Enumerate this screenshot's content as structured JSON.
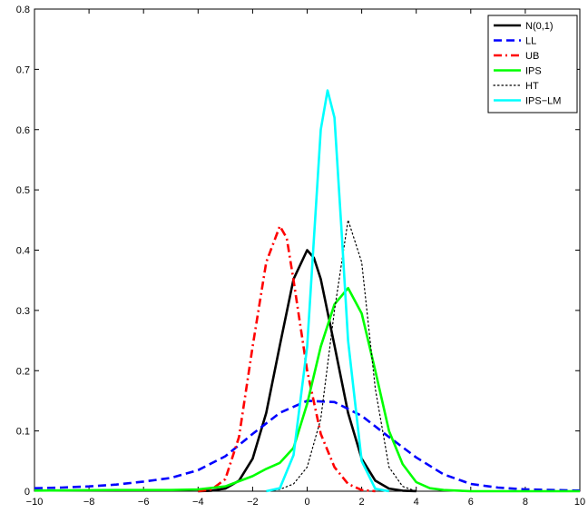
{
  "chart_data": {
    "type": "line",
    "title": "",
    "xlabel": "",
    "ylabel": "",
    "xlim": [
      -10,
      10
    ],
    "ylim": [
      0,
      0.8
    ],
    "x_ticks": [
      -10,
      -8,
      -6,
      -4,
      -2,
      0,
      2,
      4,
      6,
      8,
      10
    ],
    "y_ticks": [
      0,
      0.1,
      0.2,
      0.3,
      0.4,
      0.5,
      0.6,
      0.7,
      0.8
    ],
    "x_tick_labels": [
      "−10",
      "−8",
      "−6",
      "−4",
      "−2",
      "0",
      "2",
      "4",
      "6",
      "8",
      "10"
    ],
    "y_tick_labels": [
      "0",
      "0.1",
      "0.2",
      "0.3",
      "0.4",
      "0.5",
      "0.6",
      "0.7",
      "0.8"
    ],
    "grid": false,
    "legend_position": "top-right",
    "series": [
      {
        "name": "N(0,1)",
        "color": "#000000",
        "style": "solid",
        "x": [
          -4,
          -3.5,
          -3,
          -2.5,
          -2,
          -1.5,
          -1,
          -0.5,
          0,
          0.25,
          0.5,
          1,
          1.5,
          2,
          2.5,
          3,
          3.5,
          4
        ],
        "y": [
          0.0001,
          0.0009,
          0.0044,
          0.0175,
          0.054,
          0.13,
          0.242,
          0.352,
          0.4,
          0.387,
          0.352,
          0.242,
          0.13,
          0.054,
          0.0175,
          0.0044,
          0.0009,
          0.0001
        ]
      },
      {
        "name": "LL",
        "color": "#0000ff",
        "style": "dashed",
        "x": [
          -10,
          -9,
          -8,
          -7,
          -6,
          -5,
          -4,
          -3,
          -2,
          -1,
          0,
          1,
          2,
          3,
          4,
          5,
          6,
          7,
          8,
          9,
          10
        ],
        "y": [
          0.005,
          0.006,
          0.008,
          0.011,
          0.016,
          0.022,
          0.035,
          0.058,
          0.095,
          0.13,
          0.15,
          0.148,
          0.125,
          0.09,
          0.056,
          0.028,
          0.012,
          0.006,
          0.003,
          0.002,
          0.001
        ]
      },
      {
        "name": "UB",
        "color": "#ff0000",
        "style": "dashdot",
        "x": [
          -4,
          -3.5,
          -3,
          -2.5,
          -2,
          -1.5,
          -1,
          -0.75,
          -0.5,
          0,
          0.5,
          1,
          1.5,
          2,
          2.5
        ],
        "y": [
          0.0,
          0.003,
          0.02,
          0.09,
          0.24,
          0.38,
          0.44,
          0.42,
          0.35,
          0.2,
          0.095,
          0.04,
          0.012,
          0.002,
          0.0
        ]
      },
      {
        "name": "IPS",
        "color": "#00ff00",
        "style": "solid",
        "x": [
          -10,
          -7,
          -5,
          -4,
          -3,
          -2,
          -1.5,
          -1,
          -0.5,
          0,
          0.5,
          1,
          1.5,
          2,
          2.5,
          3,
          3.5,
          4,
          4.5,
          5,
          6,
          10
        ],
        "y": [
          0.001,
          0.002,
          0.002,
          0.003,
          0.008,
          0.025,
          0.037,
          0.047,
          0.072,
          0.145,
          0.24,
          0.31,
          0.337,
          0.295,
          0.2,
          0.1,
          0.045,
          0.015,
          0.005,
          0.002,
          0.0,
          0.0
        ]
      },
      {
        "name": "HT",
        "color": "#000000",
        "style": "dotted",
        "x": [
          -1.5,
          -1,
          -0.5,
          0,
          0.5,
          1,
          1.5,
          2,
          2.5,
          3,
          3.5,
          4
        ],
        "y": [
          0.0,
          0.003,
          0.012,
          0.04,
          0.12,
          0.3,
          0.45,
          0.38,
          0.17,
          0.04,
          0.008,
          0.0
        ]
      },
      {
        "name": "IPS−LM",
        "color": "#00ffff",
        "style": "solid",
        "x": [
          -1.5,
          -1,
          -0.5,
          0,
          0.25,
          0.5,
          0.75,
          1,
          1.25,
          1.5,
          2,
          2.5,
          3
        ],
        "y": [
          0.0,
          0.005,
          0.06,
          0.24,
          0.42,
          0.6,
          0.665,
          0.62,
          0.44,
          0.25,
          0.05,
          0.004,
          0.0
        ]
      }
    ]
  }
}
